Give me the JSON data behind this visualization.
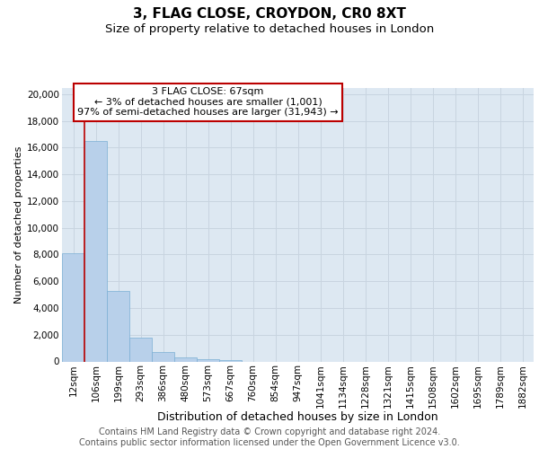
{
  "title": "3, FLAG CLOSE, CROYDON, CR0 8XT",
  "subtitle": "Size of property relative to detached houses in London",
  "xlabel": "Distribution of detached houses by size in London",
  "ylabel": "Number of detached properties",
  "categories": [
    "12sqm",
    "106sqm",
    "199sqm",
    "293sqm",
    "386sqm",
    "480sqm",
    "573sqm",
    "667sqm",
    "760sqm",
    "854sqm",
    "947sqm",
    "1041sqm",
    "1134sqm",
    "1228sqm",
    "1321sqm",
    "1415sqm",
    "1508sqm",
    "1602sqm",
    "1695sqm",
    "1789sqm",
    "1882sqm"
  ],
  "values": [
    8100,
    16500,
    5300,
    1800,
    700,
    300,
    200,
    130,
    0,
    0,
    0,
    0,
    0,
    0,
    0,
    0,
    0,
    0,
    0,
    0,
    0
  ],
  "bar_color": "#b8d0ea",
  "bar_edge_color": "#7aafd4",
  "vline_color": "#bb0000",
  "annotation_box_text": "3 FLAG CLOSE: 67sqm\n← 3% of detached houses are smaller (1,001)\n97% of semi-detached houses are larger (31,943) →",
  "annotation_box_edgecolor": "#bb0000",
  "ylim": [
    0,
    20500
  ],
  "yticks": [
    0,
    2000,
    4000,
    6000,
    8000,
    10000,
    12000,
    14000,
    16000,
    18000,
    20000
  ],
  "grid_color": "#c8d4e0",
  "background_color": "#dde8f2",
  "footer_text": "Contains HM Land Registry data © Crown copyright and database right 2024.\nContains public sector information licensed under the Open Government Licence v3.0.",
  "title_fontsize": 11,
  "subtitle_fontsize": 9.5,
  "xlabel_fontsize": 9,
  "ylabel_fontsize": 8,
  "tick_fontsize": 7.5,
  "footer_fontsize": 7,
  "annot_fontsize": 8
}
